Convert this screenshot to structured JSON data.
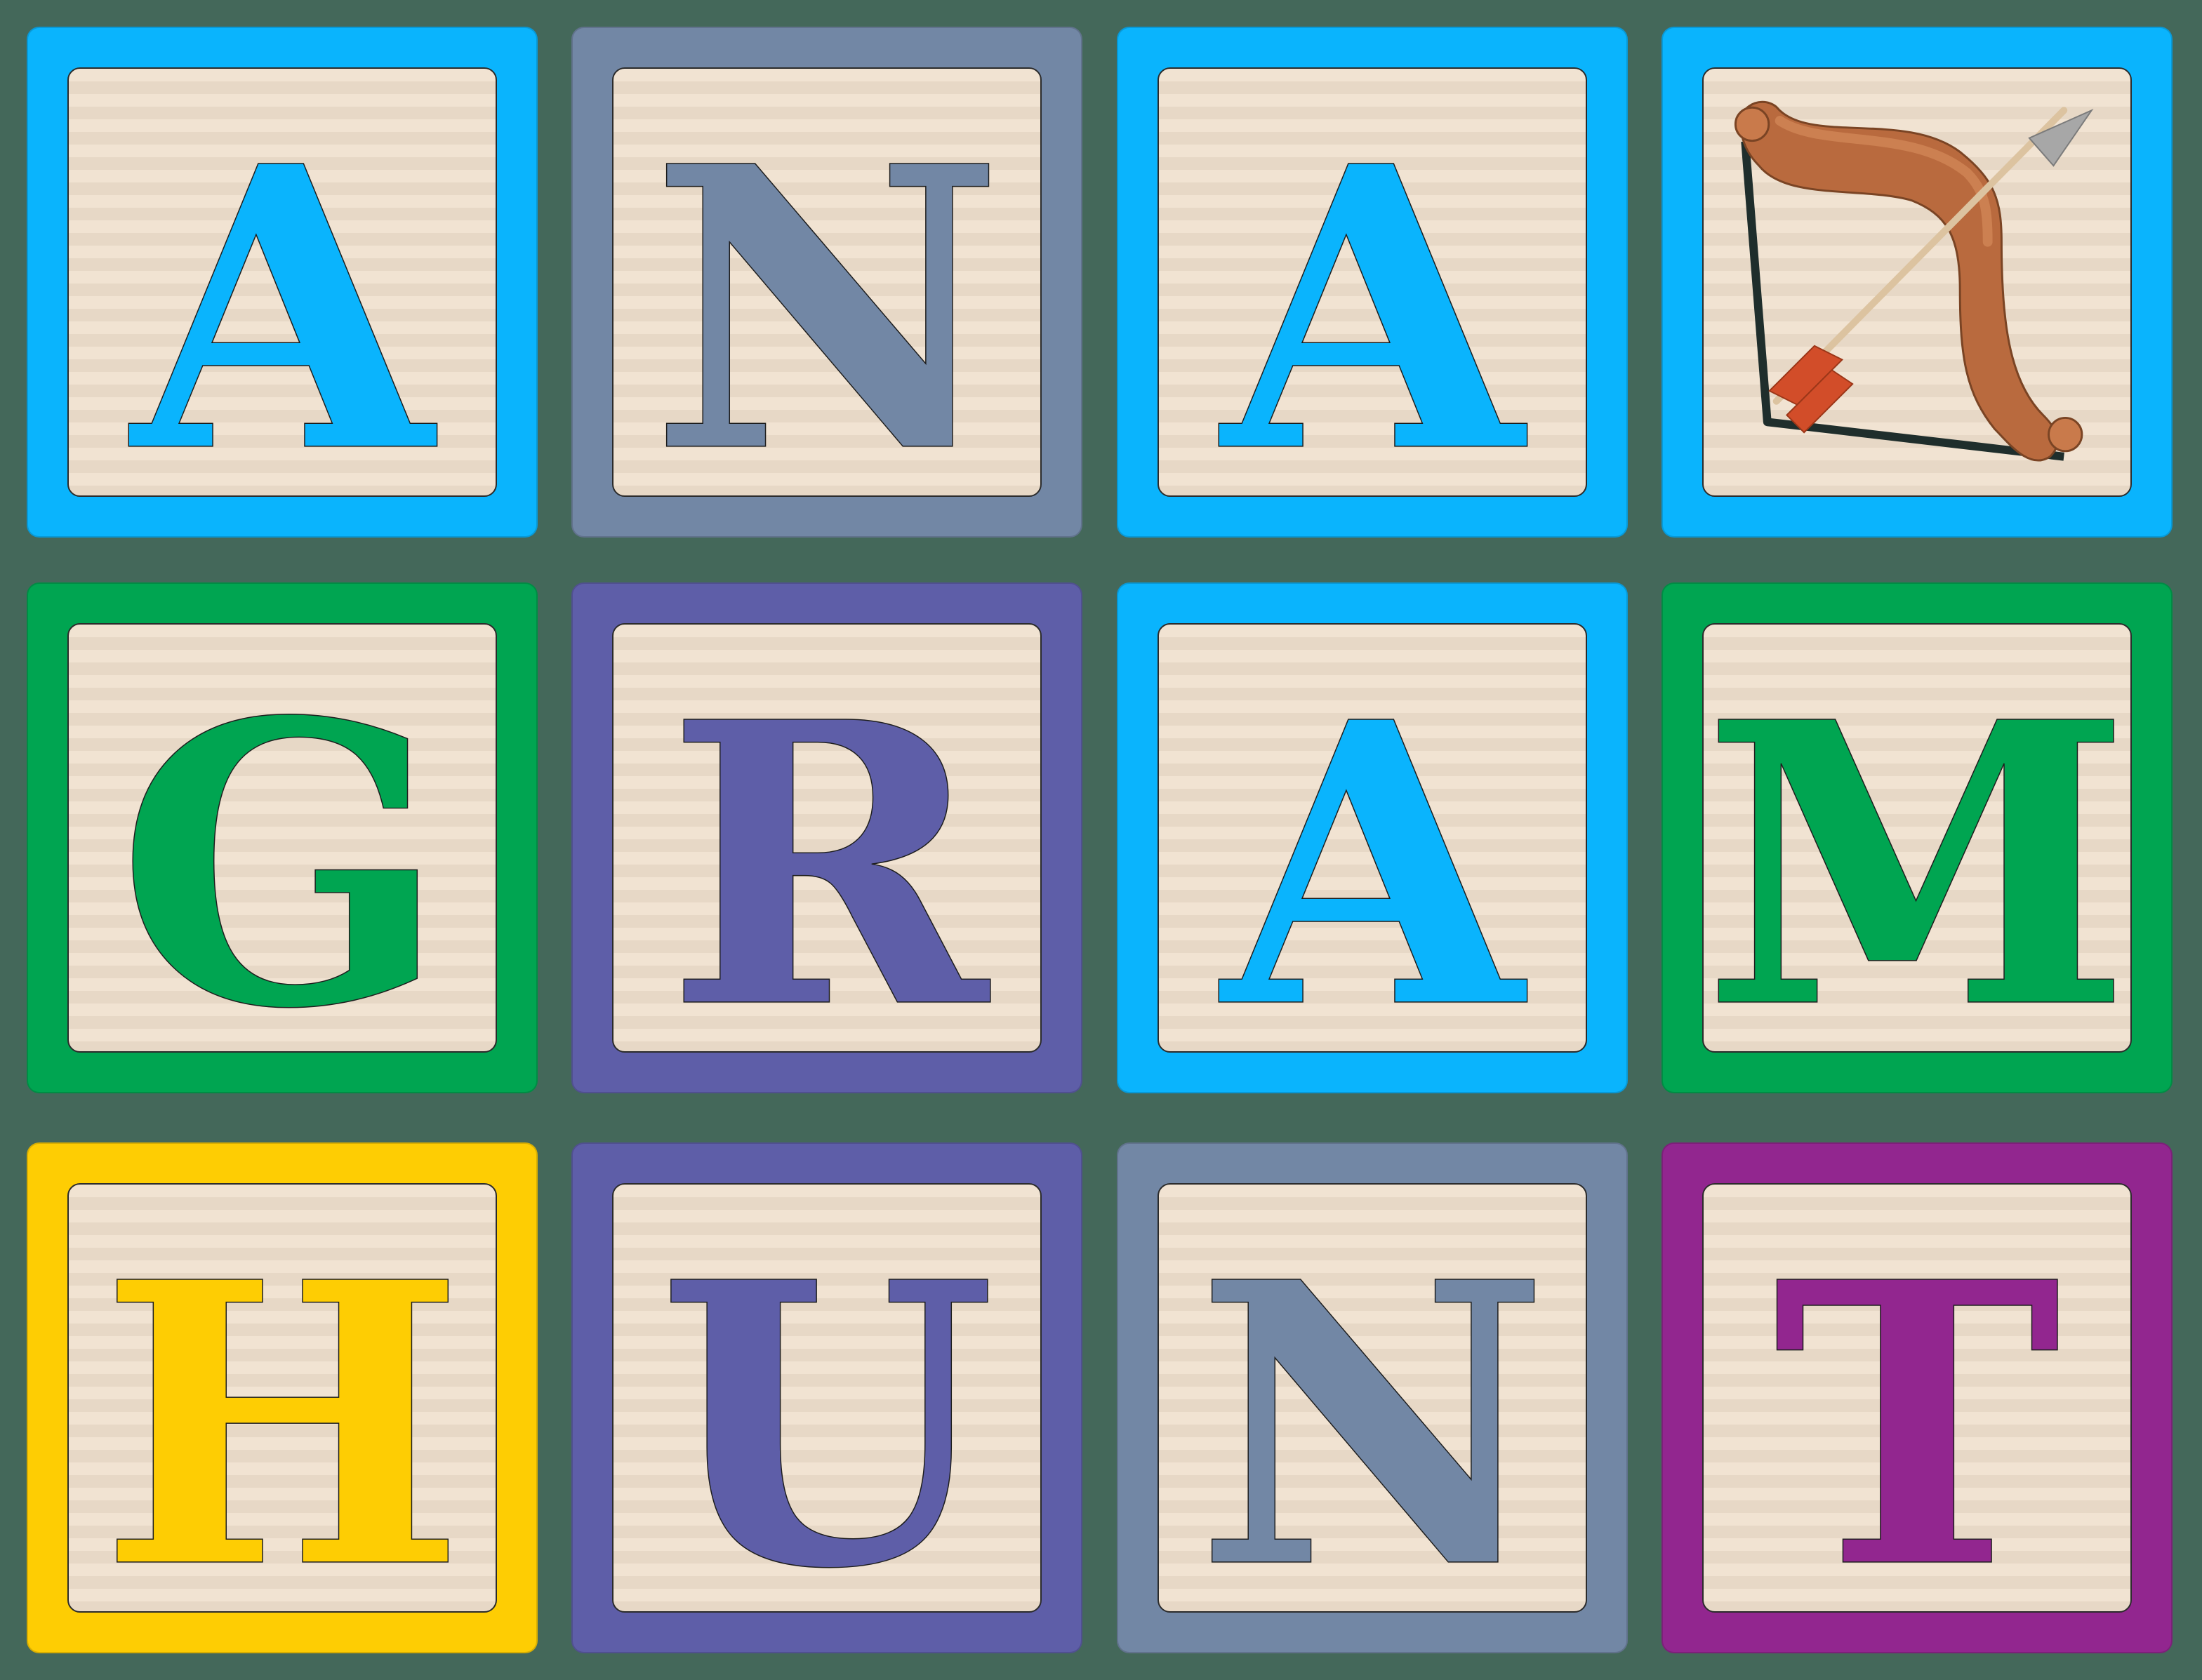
{
  "colors": {
    "background": "#44685a",
    "face": "#f1e3d2",
    "cyan": "#0ab4fd",
    "slate": "#7287a5",
    "green": "#00a551",
    "indigo": "#5e5ea8",
    "yellow": "#fecd03",
    "purple": "#92268f"
  },
  "rows": [
    [
      {
        "letter": "A",
        "color": "#0ab4fd"
      },
      {
        "letter": "N",
        "color": "#7287a5"
      },
      {
        "letter": "A",
        "color": "#0ab4fd"
      },
      {
        "letter": "",
        "color": "#0ab4fd",
        "icon": "bow-and-arrow-icon"
      }
    ],
    [
      {
        "letter": "G",
        "color": "#00a551"
      },
      {
        "letter": "R",
        "color": "#5e5ea8"
      },
      {
        "letter": "A",
        "color": "#0ab4fd"
      },
      {
        "letter": "M",
        "color": "#00a551"
      }
    ],
    [
      {
        "letter": "H",
        "color": "#fecd03"
      },
      {
        "letter": "U",
        "color": "#5e5ea8"
      },
      {
        "letter": "N",
        "color": "#7287a5"
      },
      {
        "letter": "T",
        "color": "#92268f"
      }
    ]
  ]
}
